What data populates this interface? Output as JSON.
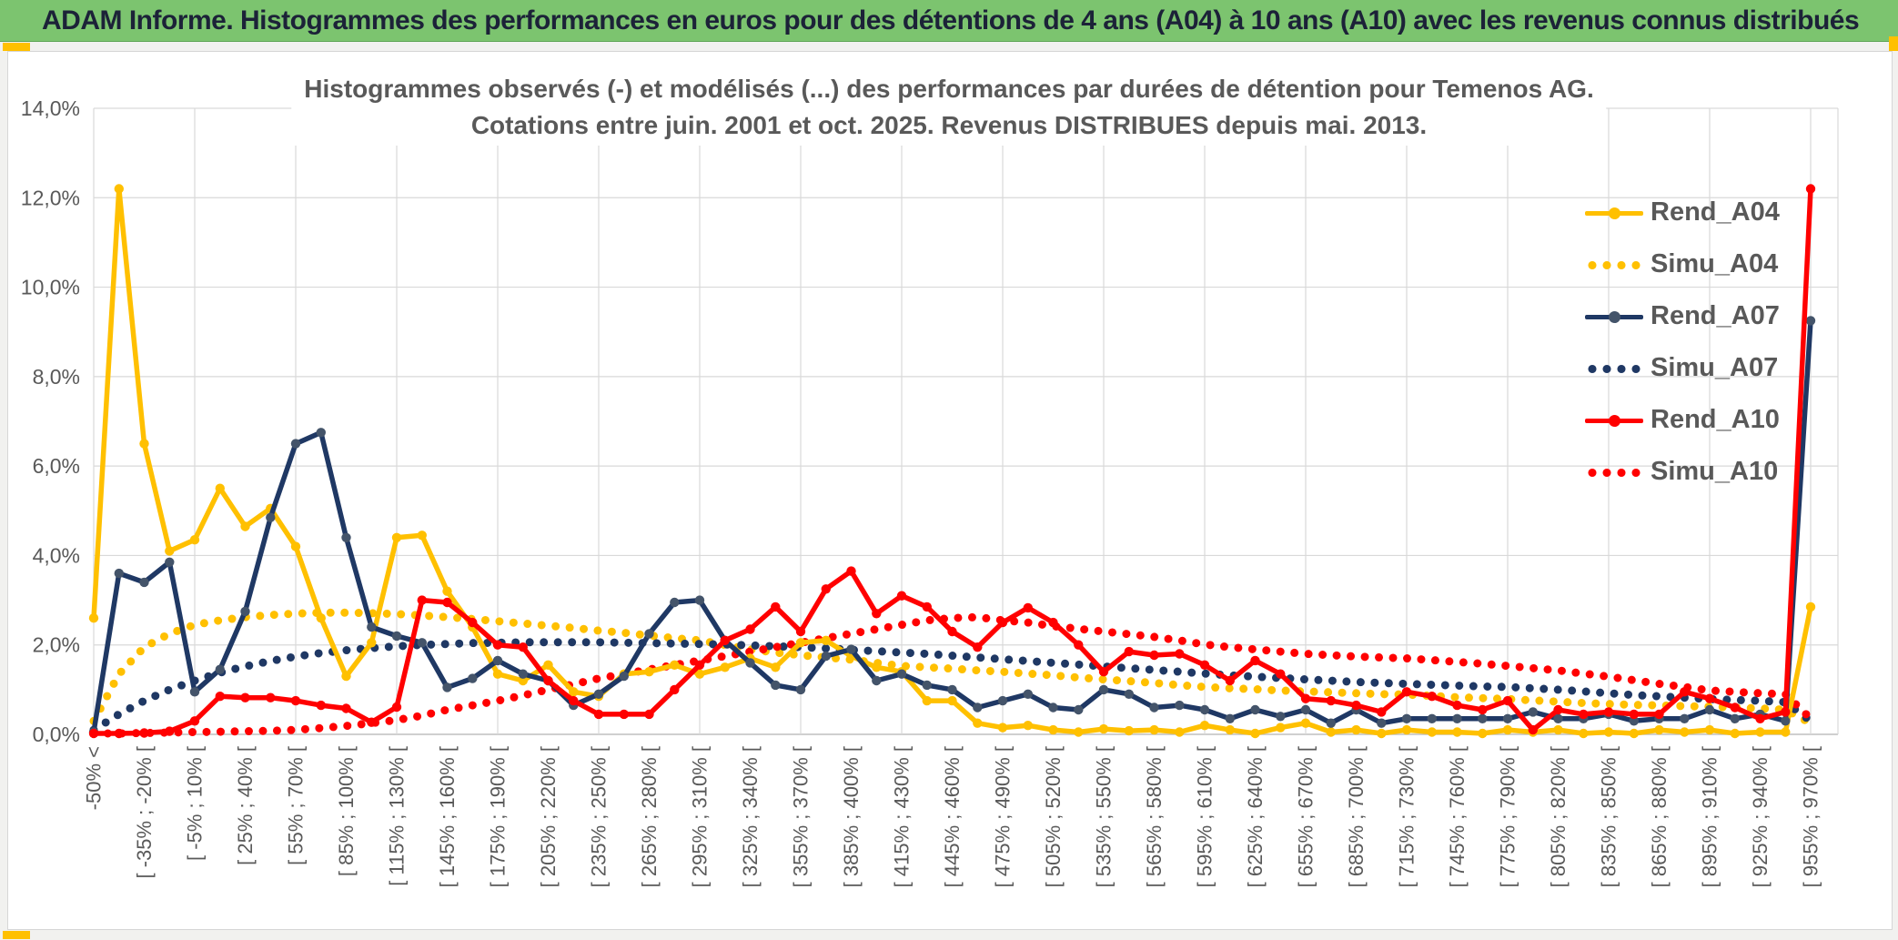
{
  "banner": {
    "title": "ADAM Informe. Histogrammes des performances en euros pour des détentions de 4 ans (A04) à 10 ans (A10) avec les revenus connus distribués",
    "background_color": "#7cc46f",
    "accent_color": "#ffc000"
  },
  "chart_title": {
    "line1": "Histogrammes observés (-) et modélisés (...) des performances par durées de détention pour Temenos AG.",
    "line2": "Cotations entre juin. 2001 et oct. 2025. Revenus DISTRIBUES depuis mai. 2013."
  },
  "legend": [
    {
      "label": "Rend_A04",
      "color": "#ffc000",
      "marker_color": "#ffc000",
      "style": "solid"
    },
    {
      "label": "Simu_A04",
      "color": "#ffc000",
      "marker_color": "#ffc000",
      "style": "dotted"
    },
    {
      "label": "Rend_A07",
      "color": "#1f3864",
      "marker_color": "#44546a",
      "style": "solid"
    },
    {
      "label": "Simu_A07",
      "color": "#1f3864",
      "marker_color": "#1f3864",
      "style": "dotted"
    },
    {
      "label": "Rend_A10",
      "color": "#ff0000",
      "marker_color": "#ff0000",
      "style": "solid"
    },
    {
      "label": "Simu_A10",
      "color": "#ff0000",
      "marker_color": "#ff0000",
      "style": "dotted"
    }
  ],
  "chart_data": {
    "type": "line",
    "title": "Histogrammes observés (-) et modélisés (...) des performances par durées de détention pour Temenos AG. Cotations entre juin. 2001 et oct. 2025. Revenus DISTRIBUES depuis mai. 2013.",
    "ylabel": "",
    "xlabel": "",
    "ylim": [
      0,
      14
    ],
    "y_tick_labels": [
      "0,0%",
      "2,0%",
      "4,0%",
      "6,0%",
      "8,0%",
      "10,0%",
      "12,0%",
      "14,0%"
    ],
    "grid": true,
    "legend_position": "right",
    "x_labels": [
      "-50% <",
      "[ -35% ; -20% [",
      "[ -5% ; 10% [",
      "[ 25% ; 40% [",
      "[ 55% ; 70% [",
      "[ 85% ; 100% [",
      "[ 115% ; 130% [",
      "[ 145% ; 160% [",
      "[ 175% ; 190% [",
      "[ 205% ; 220% [",
      "[ 235% ; 250% [",
      "[ 265% ; 280% [",
      "[ 295% ; 310% [",
      "[ 325% ; 340% [",
      "[ 355% ; 370% [",
      "[ 385% ; 400% [",
      "[ 415% ; 430% [",
      "[ 445% ; 460% [",
      "[ 475% ; 490% [",
      "[ 505% ; 520% [",
      "[ 535% ; 550% [",
      "[ 565% ; 580% [",
      "[ 595% ; 610% [",
      "[ 625% ; 640% [",
      "[ 655% ; 670% [",
      "[ 685% ; 700% [",
      "[ 715% ; 730% [",
      "[ 745% ; 760% [",
      "[ 775% ; 790% [",
      "[ 805% ; 820% [",
      "[ 835% ; 850% [",
      "[ 865% ; 880% [",
      "[ 895% ; 910% [",
      "[ 925% ; 940% [",
      "[ 955% ; 970% ["
    ],
    "points_per_labeled_bin": 2,
    "series": [
      {
        "name": "Simu_A04",
        "style": "dotted",
        "color": "#ffc000",
        "values": [
          0.3,
          1.35,
          1.95,
          2.25,
          2.45,
          2.55,
          2.62,
          2.67,
          2.7,
          2.72,
          2.72,
          2.71,
          2.69,
          2.66,
          2.62,
          2.58,
          2.53,
          2.48,
          2.43,
          2.38,
          2.32,
          2.27,
          2.21,
          2.15,
          2.1,
          2.0,
          1.9,
          1.83,
          1.77,
          1.72,
          1.67,
          1.6,
          1.53,
          1.5,
          1.47,
          1.43,
          1.4,
          1.36,
          1.32,
          1.27,
          1.23,
          1.19,
          1.15,
          1.1,
          1.06,
          1.03,
          1.01,
          0.98,
          0.96,
          0.94,
          0.92,
          0.9,
          0.89,
          0.86,
          0.83,
          0.81,
          0.79,
          0.76,
          0.73,
          0.7,
          0.68,
          0.66,
          0.65,
          0.63,
          0.62,
          0.6,
          0.58,
          0.55,
          0.25
        ]
      },
      {
        "name": "Simu_A07",
        "style": "dotted",
        "color": "#1f3864",
        "values": [
          0.1,
          0.45,
          0.75,
          1.0,
          1.2,
          1.38,
          1.52,
          1.64,
          1.74,
          1.82,
          1.88,
          1.93,
          1.97,
          2.0,
          2.02,
          2.04,
          2.05,
          2.06,
          2.06,
          2.06,
          2.06,
          2.05,
          2.04,
          2.03,
          2.02,
          2.01,
          1.99,
          1.97,
          1.95,
          1.92,
          1.89,
          1.86,
          1.83,
          1.8,
          1.76,
          1.72,
          1.68,
          1.64,
          1.6,
          1.56,
          1.52,
          1.48,
          1.44,
          1.4,
          1.36,
          1.32,
          1.29,
          1.26,
          1.23,
          1.2,
          1.17,
          1.15,
          1.13,
          1.11,
          1.09,
          1.07,
          1.06,
          1.03,
          1.0,
          0.96,
          0.92,
          0.88,
          0.85,
          0.82,
          0.79,
          0.77,
          0.75,
          0.72,
          0.3
        ]
      },
      {
        "name": "Simu_A10",
        "style": "dotted",
        "color": "#ff0000",
        "values": [
          0.02,
          0.02,
          0.03,
          0.04,
          0.05,
          0.06,
          0.07,
          0.08,
          0.1,
          0.14,
          0.19,
          0.25,
          0.32,
          0.42,
          0.55,
          0.65,
          0.75,
          0.87,
          1.0,
          1.12,
          1.25,
          1.35,
          1.45,
          1.55,
          1.65,
          1.75,
          1.85,
          1.95,
          2.05,
          2.15,
          2.25,
          2.35,
          2.45,
          2.55,
          2.6,
          2.62,
          2.55,
          2.5,
          2.42,
          2.36,
          2.3,
          2.24,
          2.18,
          2.1,
          2.01,
          1.95,
          1.9,
          1.85,
          1.8,
          1.77,
          1.74,
          1.72,
          1.7,
          1.66,
          1.62,
          1.58,
          1.53,
          1.48,
          1.43,
          1.36,
          1.29,
          1.21,
          1.13,
          1.06,
          0.98,
          0.95,
          0.92,
          0.9,
          0.35
        ]
      },
      {
        "name": "Rend_A04",
        "style": "solid",
        "color": "#ffc000",
        "marker_color": "#ffc000",
        "values": [
          2.6,
          12.2,
          6.5,
          4.1,
          4.35,
          5.5,
          4.65,
          5.05,
          4.2,
          2.6,
          1.3,
          2.05,
          4.4,
          4.45,
          3.2,
          2.4,
          1.35,
          1.2,
          1.55,
          0.95,
          0.85,
          1.35,
          1.4,
          1.55,
          1.35,
          1.5,
          1.7,
          1.5,
          2.05,
          2.1,
          1.75,
          1.5,
          1.4,
          0.75,
          0.75,
          0.25,
          0.15,
          0.2,
          0.1,
          0.05,
          0.12,
          0.08,
          0.1,
          0.05,
          0.2,
          0.1,
          0.02,
          0.15,
          0.25,
          0.05,
          0.1,
          0.02,
          0.1,
          0.05,
          0.05,
          0.02,
          0.1,
          0.05,
          0.1,
          0.02,
          0.05,
          0.02,
          0.1,
          0.05,
          0.1,
          0.02,
          0.05,
          0.05,
          2.85
        ]
      },
      {
        "name": "Rend_A07",
        "style": "solid",
        "color": "#1f3864",
        "marker_color": "#44546a",
        "values": [
          0.05,
          3.6,
          3.4,
          3.85,
          0.95,
          1.45,
          2.75,
          4.85,
          6.5,
          6.75,
          4.4,
          2.4,
          2.2,
          2.05,
          1.05,
          1.25,
          1.65,
          1.35,
          1.2,
          0.65,
          0.9,
          1.3,
          2.25,
          2.95,
          3.0,
          2.1,
          1.6,
          1.1,
          1.0,
          1.75,
          1.9,
          1.2,
          1.35,
          1.1,
          1.0,
          0.6,
          0.75,
          0.9,
          0.6,
          0.55,
          1.0,
          0.9,
          0.6,
          0.65,
          0.55,
          0.35,
          0.55,
          0.4,
          0.55,
          0.25,
          0.55,
          0.25,
          0.35,
          0.35,
          0.35,
          0.35,
          0.35,
          0.5,
          0.35,
          0.35,
          0.45,
          0.3,
          0.35,
          0.35,
          0.55,
          0.35,
          0.45,
          0.3,
          9.25
        ]
      },
      {
        "name": "Rend_A10",
        "style": "solid",
        "color": "#ff0000",
        "marker_color": "#ff0000",
        "values": [
          0.02,
          0.02,
          0.03,
          0.07,
          0.3,
          0.85,
          0.82,
          0.82,
          0.75,
          0.65,
          0.58,
          0.27,
          0.61,
          3.0,
          2.95,
          2.5,
          2.0,
          1.95,
          1.2,
          0.75,
          0.45,
          0.45,
          0.45,
          1.0,
          1.55,
          2.1,
          2.35,
          2.85,
          2.3,
          3.25,
          3.65,
          2.7,
          3.1,
          2.85,
          2.3,
          1.95,
          2.5,
          2.83,
          2.5,
          2.0,
          1.4,
          1.85,
          1.77,
          1.8,
          1.55,
          1.2,
          1.65,
          1.35,
          0.8,
          0.75,
          0.65,
          0.5,
          0.95,
          0.85,
          0.65,
          0.55,
          0.75,
          0.1,
          0.55,
          0.45,
          0.5,
          0.45,
          0.45,
          0.95,
          0.8,
          0.6,
          0.35,
          0.5,
          12.2
        ]
      }
    ]
  },
  "colors": {
    "grid": "#d9d9d9",
    "axis_line": "#bfbfbf",
    "axis_text": "#595959",
    "title_text": "#595959",
    "banner_text": "#1c2238"
  }
}
